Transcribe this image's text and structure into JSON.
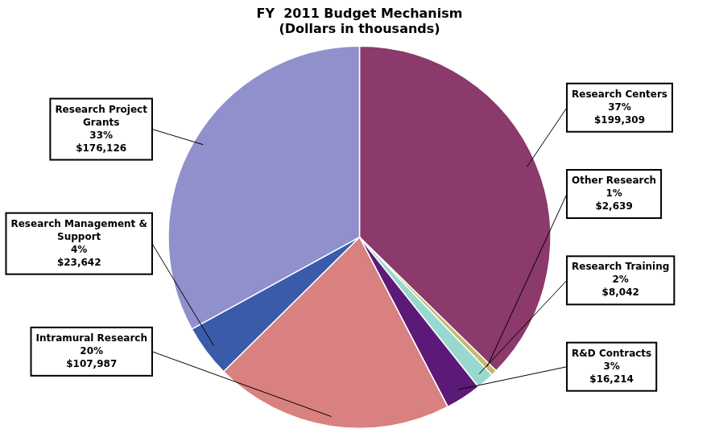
{
  "chart_data": {
    "type": "pie",
    "title": "FY  2011 Budget Mechanism\n(Dollars in thousands)",
    "categories": [
      "Research Centers",
      "Other Research",
      "Research Training",
      "R&D Contracts",
      "Intramural Research",
      "Research Management &\nSupport",
      "Research Project\nGrants"
    ],
    "values": [
      199309,
      2639,
      8042,
      16214,
      107987,
      23642,
      176126
    ],
    "value_labels": [
      "$199,309",
      "$2,639",
      "$8,042",
      "$16,214",
      "$107,987",
      "$23,642",
      "$176,126"
    ],
    "percentages": [
      {
        "value": 37,
        "label": "37%"
      },
      {
        "value": 1,
        "label": "1%"
      },
      {
        "value": 2,
        "label": "2%"
      },
      {
        "value": 3,
        "label": "3%"
      },
      {
        "value": 20,
        "label": "20%"
      },
      {
        "value": 4,
        "label": "4%"
      },
      {
        "value": 33,
        "label": "33%"
      }
    ],
    "colors": [
      "#8B3A6B",
      "#C8B86A",
      "#98D8D0",
      "#5C1A78",
      "#D98080",
      "#3A5BAA",
      "#9090CC"
    ],
    "data_labels": true
  }
}
